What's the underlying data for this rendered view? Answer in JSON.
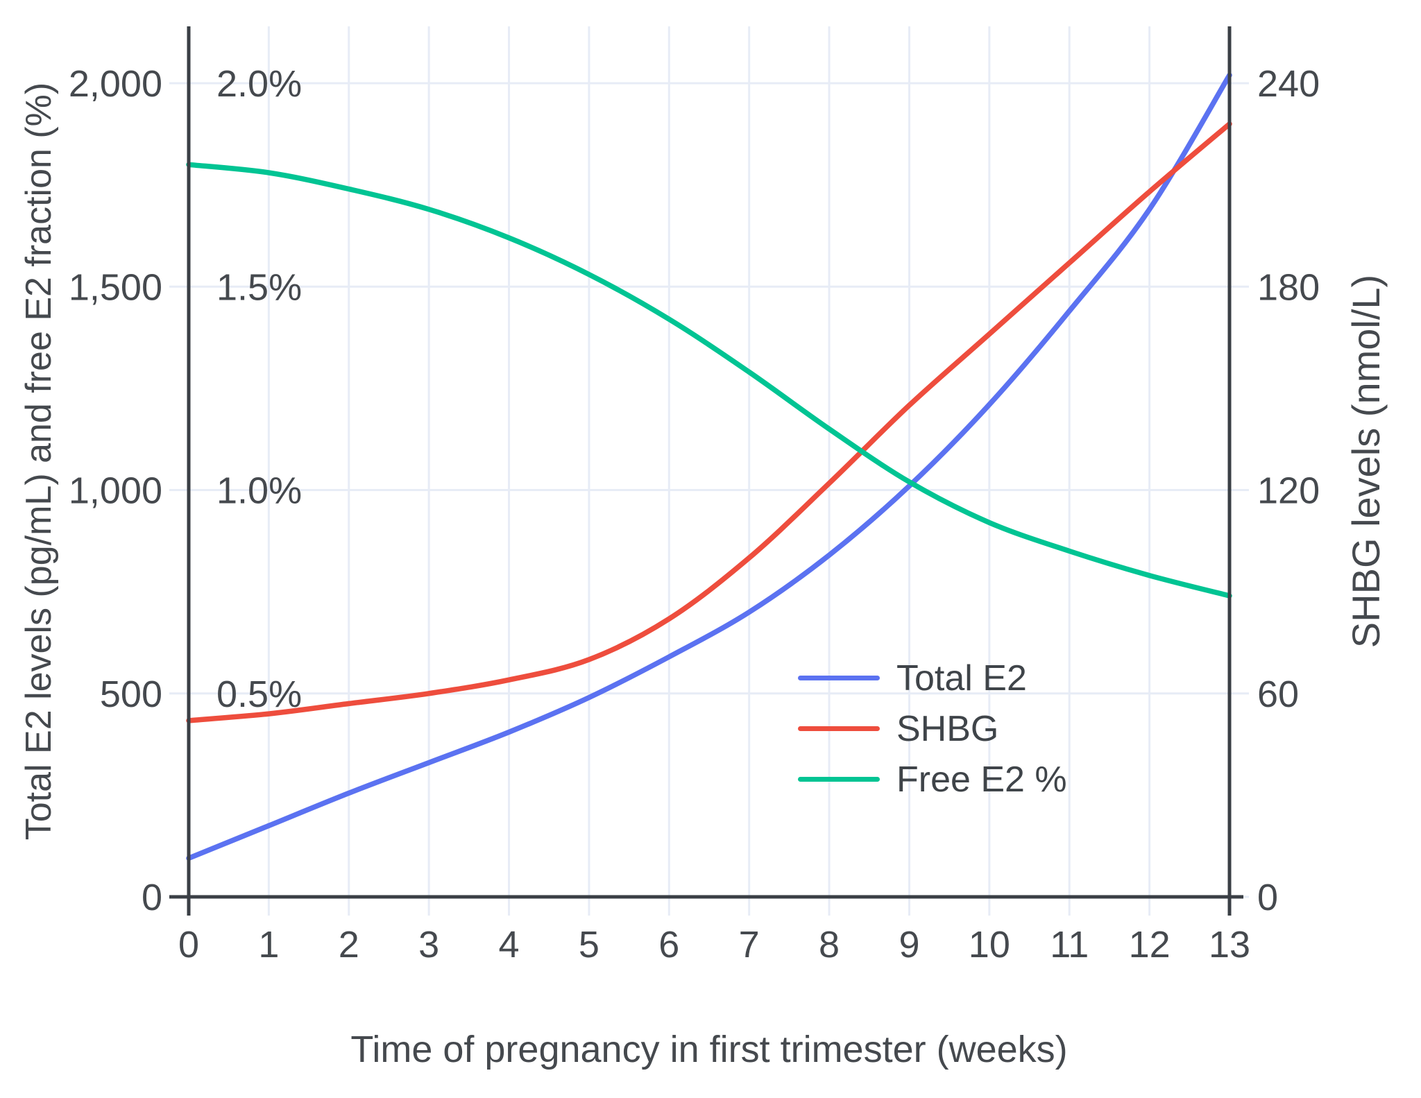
{
  "chart_data": {
    "type": "line",
    "title": "",
    "x_axis": {
      "label": "Time of pregnancy in first trimester (weeks)",
      "values": [
        0,
        1,
        2,
        3,
        4,
        5,
        6,
        7,
        8,
        9,
        10,
        11,
        12,
        13
      ],
      "tick_labels": [
        "0",
        "1",
        "2",
        "3",
        "4",
        "5",
        "6",
        "7",
        "8",
        "9",
        "10",
        "11",
        "12",
        "13"
      ],
      "range": [
        0,
        13
      ]
    },
    "y_left_axis": {
      "label": "Total E2 levels (pg/mL) and free E2 fraction (%)",
      "tick_values": [
        0,
        500,
        1000,
        1500,
        2000
      ],
      "tick_labels": [
        "0",
        "500",
        "1,000",
        "1,500",
        "2,000"
      ],
      "range": [
        0,
        2000
      ]
    },
    "free_fraction_axis": {
      "note": "percent labels drawn inside plot on same gridlines as left axis",
      "tick_labels": [
        "0.5%",
        "1.0%",
        "1.5%",
        "2.0%"
      ],
      "tick_values_in_left_units": [
        500,
        1000,
        1500,
        2000
      ]
    },
    "y_right_axis": {
      "label": "SHBG levels (nmol/L)",
      "tick_values": [
        0,
        60,
        120,
        180,
        240
      ],
      "tick_labels": [
        "0",
        "60",
        "120",
        "180",
        "240"
      ],
      "range": [
        0,
        240
      ]
    },
    "series": [
      {
        "name": "Total E2",
        "unit": "pg/mL",
        "axis": "left",
        "color": "#5b72f1",
        "to_left_factor": 1,
        "values": [
          95,
          175,
          255,
          330,
          405,
          490,
          590,
          700,
          840,
          1010,
          1210,
          1440,
          1690,
          2020
        ]
      },
      {
        "name": "SHBG",
        "unit": "nmol/L",
        "axis": "right",
        "color": "#ee4d3d",
        "to_left_factor": 8.3333,
        "values": [
          52,
          54,
          57,
          60,
          64,
          70,
          82,
          100,
          122,
          145,
          166,
          187,
          208,
          228
        ]
      },
      {
        "name": "Free E2 %",
        "unit": "%",
        "axis": "left-percent",
        "color": "#00c493",
        "to_left_factor": 1000,
        "values": [
          1.8,
          1.78,
          1.74,
          1.69,
          1.62,
          1.53,
          1.42,
          1.29,
          1.15,
          1.02,
          0.92,
          0.85,
          0.79,
          0.74
        ]
      }
    ],
    "legend_position": "inside-right-middle",
    "grid": true,
    "colors": {
      "grid": "#e7ecf6",
      "axis": "#3a3f45",
      "text": "#45494e"
    }
  }
}
